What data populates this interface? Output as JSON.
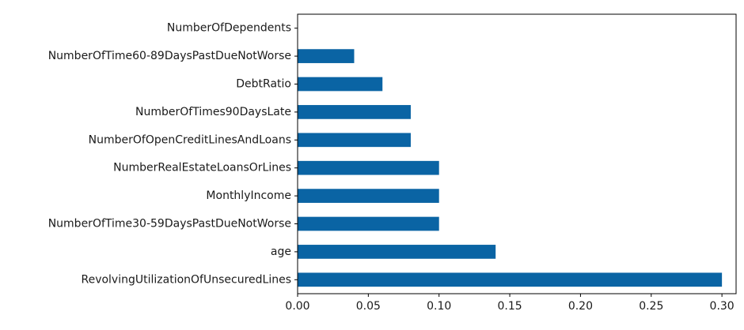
{
  "chart_data": {
    "type": "bar",
    "orientation": "horizontal",
    "categories": [
      "RevolvingUtilizationOfUnsecuredLines",
      "age",
      "NumberOfTime30-59DaysPastDueNotWorse",
      "MonthlyIncome",
      "NumberRealEstateLoansOrLines",
      "NumberOfOpenCreditLinesAndLoans",
      "NumberOfTimes90DaysLate",
      "DebtRatio",
      "NumberOfTime60-89DaysPastDueNotWorse",
      "NumberOfDependents"
    ],
    "values": [
      0.3,
      0.14,
      0.1,
      0.1,
      0.1,
      0.08,
      0.08,
      0.06,
      0.04,
      0.0
    ],
    "xlim": [
      0.0,
      0.31
    ],
    "xticks": [
      "0.00",
      "0.05",
      "0.10",
      "0.15",
      "0.20",
      "0.25",
      "0.30"
    ],
    "xtick_values": [
      0.0,
      0.05,
      0.1,
      0.15,
      0.2,
      0.25,
      0.3
    ],
    "bar_color": "#0a64a4",
    "grid": false,
    "title": "",
    "xlabel": "",
    "ylabel": ""
  }
}
